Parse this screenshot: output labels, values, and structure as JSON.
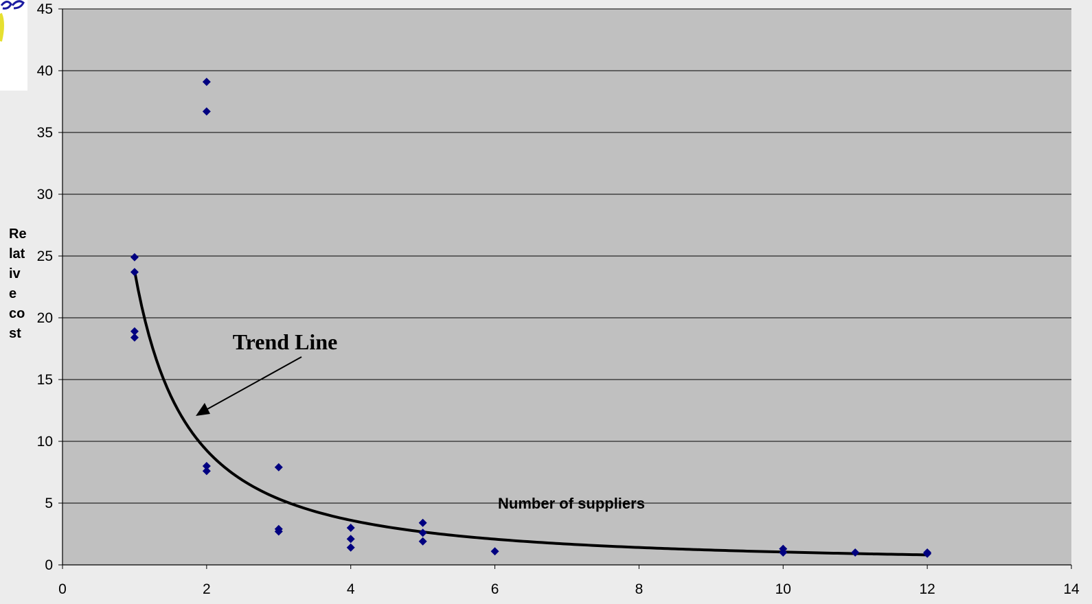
{
  "chart_data": {
    "type": "scatter",
    "title": "",
    "xlabel": "Number of suppliers",
    "ylabel": "Relative cost",
    "ylabel_lines": [
      "Re",
      "lat",
      "iv",
      "e",
      "co",
      "st"
    ],
    "xlim": [
      0,
      14
    ],
    "ylim": [
      0,
      45
    ],
    "x_ticks": [
      "0",
      "2",
      "4",
      "6",
      "8",
      "10",
      "12",
      "14"
    ],
    "y_ticks": [
      "0",
      "5",
      "10",
      "15",
      "20",
      "25",
      "30",
      "35",
      "40",
      "45"
    ],
    "grid": "horizontal",
    "plot_background": "#c0c0c0",
    "point_color": "#000080",
    "series": [
      {
        "marker": "diamond",
        "points": [
          {
            "x": 1,
            "y": 24.9
          },
          {
            "x": 1,
            "y": 23.7
          },
          {
            "x": 1,
            "y": 18.9
          },
          {
            "x": 1,
            "y": 18.4
          },
          {
            "x": 2,
            "y": 39.1
          },
          {
            "x": 2,
            "y": 36.7
          },
          {
            "x": 2,
            "y": 8.0
          },
          {
            "x": 2,
            "y": 7.6
          },
          {
            "x": 3,
            "y": 7.9
          },
          {
            "x": 3,
            "y": 2.9
          },
          {
            "x": 3,
            "y": 2.7
          },
          {
            "x": 4,
            "y": 3.0
          },
          {
            "x": 4,
            "y": 2.1
          },
          {
            "x": 4,
            "y": 1.4
          },
          {
            "x": 5,
            "y": 3.4
          },
          {
            "x": 5,
            "y": 2.6
          },
          {
            "x": 5,
            "y": 1.9
          },
          {
            "x": 6,
            "y": 1.1
          },
          {
            "x": 10,
            "y": 1.3
          },
          {
            "x": 10,
            "y": 1.0
          },
          {
            "x": 11,
            "y": 1.0
          },
          {
            "x": 12,
            "y": 1.0
          },
          {
            "x": 12,
            "y": 0.9
          }
        ]
      }
    ],
    "trend_line": {
      "model": "power",
      "a": 23.8,
      "b": -1.36,
      "x_range": [
        1,
        12
      ],
      "color": "#000000"
    },
    "annotations": [
      {
        "text": "Trend Line"
      }
    ]
  }
}
